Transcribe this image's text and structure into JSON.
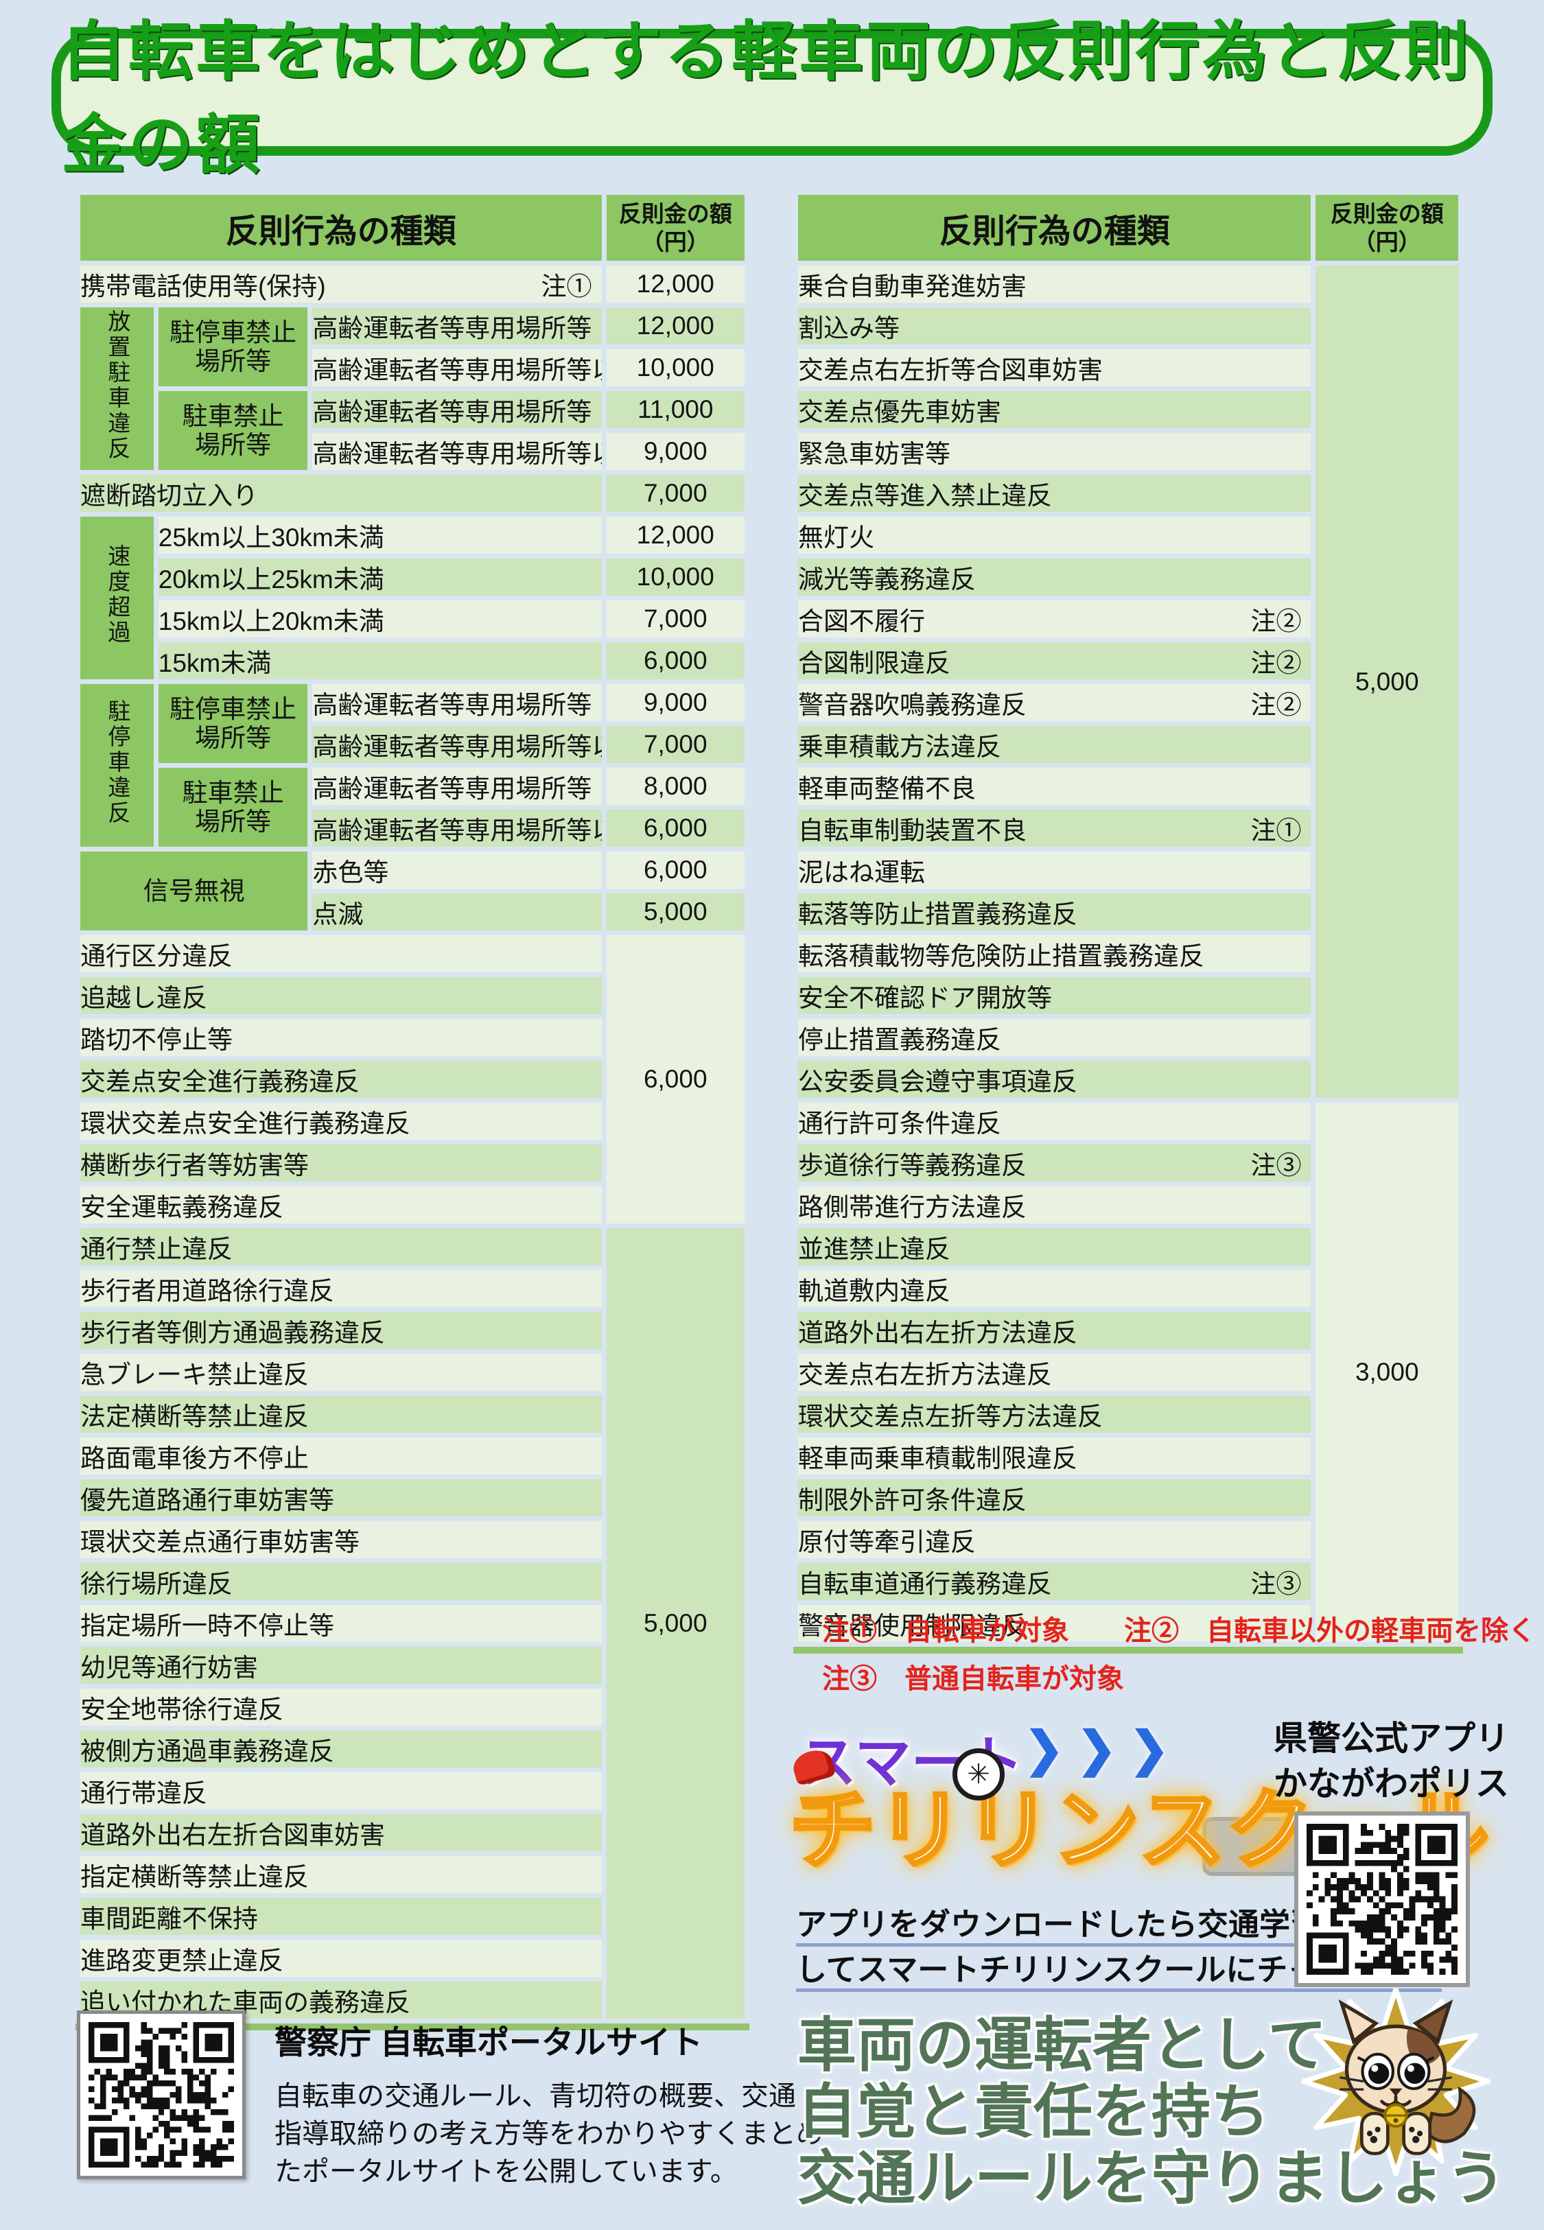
{
  "title": "自転車をはじめとする軽車両の反則行為と反則金の額",
  "tables": {
    "header": {
      "kind": "反則行為の種類",
      "fee1": "反則金の額",
      "fee2": "（円）"
    },
    "left": {
      "rows": [
        [
          {
            "t": "携帯電話使用等(保持)",
            "k": "n",
            "cs": 3,
            "note": "注①"
          },
          {
            "t": "12,000",
            "k": "f"
          }
        ],
        [
          {
            "t": "放置駐車違反",
            "k": "g",
            "v": 1,
            "rs": 4
          },
          {
            "t": "駐停車禁止\n場所等",
            "k": "g",
            "rs": 2
          },
          {
            "t": "高齢運転者等専用場所等",
            "k": "n"
          },
          {
            "t": "12,000",
            "k": "f"
          }
        ],
        [
          {
            "t": "高齢運転者等専用場所等以外",
            "k": "n"
          },
          {
            "t": "10,000",
            "k": "f"
          }
        ],
        [
          {
            "t": "駐車禁止\n場所等",
            "k": "g",
            "rs": 2
          },
          {
            "t": "高齢運転者等専用場所等",
            "k": "n"
          },
          {
            "t": "11,000",
            "k": "f"
          }
        ],
        [
          {
            "t": "高齢運転者等専用場所等以外",
            "k": "n"
          },
          {
            "t": "9,000",
            "k": "f"
          }
        ],
        [
          {
            "t": "遮断踏切立入り",
            "k": "n",
            "cs": 3
          },
          {
            "t": "7,000",
            "k": "f"
          }
        ],
        [
          {
            "t": "速度超過",
            "k": "g",
            "v": 1,
            "rs": 4
          },
          {
            "t": "25km以上30km未満",
            "k": "n",
            "cs": 2
          },
          {
            "t": "12,000",
            "k": "f"
          }
        ],
        [
          {
            "t": "20km以上25km未満",
            "k": "n",
            "cs": 2
          },
          {
            "t": "10,000",
            "k": "f"
          }
        ],
        [
          {
            "t": "15km以上20km未満",
            "k": "n",
            "cs": 2
          },
          {
            "t": "7,000",
            "k": "f"
          }
        ],
        [
          {
            "t": "15km未満",
            "k": "n",
            "cs": 2
          },
          {
            "t": "6,000",
            "k": "f"
          }
        ],
        [
          {
            "t": "駐停車違反",
            "k": "g",
            "v": 1,
            "rs": 4
          },
          {
            "t": "駐停車禁止\n場所等",
            "k": "g",
            "rs": 2
          },
          {
            "t": "高齢運転者等専用場所等",
            "k": "n"
          },
          {
            "t": "9,000",
            "k": "f"
          }
        ],
        [
          {
            "t": "高齢運転者等専用場所等以外",
            "k": "n"
          },
          {
            "t": "7,000",
            "k": "f"
          }
        ],
        [
          {
            "t": "駐車禁止\n場所等",
            "k": "g",
            "rs": 2
          },
          {
            "t": "高齢運転者等専用場所等",
            "k": "n"
          },
          {
            "t": "8,000",
            "k": "f"
          }
        ],
        [
          {
            "t": "高齢運転者等専用場所等以外",
            "k": "n"
          },
          {
            "t": "6,000",
            "k": "f"
          }
        ],
        [
          {
            "t": "信号無視",
            "k": "g",
            "rs": 2,
            "cs": 2
          },
          {
            "t": "赤色等",
            "k": "n"
          },
          {
            "t": "6,000",
            "k": "f"
          }
        ],
        [
          {
            "t": "点滅",
            "k": "n"
          },
          {
            "t": "5,000",
            "k": "f"
          }
        ],
        [
          {
            "t": "通行区分違反",
            "k": "n",
            "cs": 3
          },
          {
            "t": "6,000",
            "k": "f",
            "rs": 7,
            "shade": "light"
          }
        ],
        [
          {
            "t": "追越し違反",
            "k": "n",
            "cs": 3
          }
        ],
        [
          {
            "t": "踏切不停止等",
            "k": "n",
            "cs": 3
          }
        ],
        [
          {
            "t": "交差点安全進行義務違反",
            "k": "n",
            "cs": 3
          }
        ],
        [
          {
            "t": "環状交差点安全進行義務違反",
            "k": "n",
            "cs": 3
          }
        ],
        [
          {
            "t": "横断歩行者等妨害等",
            "k": "n",
            "cs": 3
          }
        ],
        [
          {
            "t": "安全運転義務違反",
            "k": "n",
            "cs": 3
          }
        ],
        [
          {
            "t": "通行禁止違反",
            "k": "n",
            "cs": 3
          },
          {
            "t": "5,000",
            "k": "f",
            "rs": 19,
            "shade": "med"
          }
        ],
        [
          {
            "t": "歩行者用道路徐行違反",
            "k": "n",
            "cs": 3
          }
        ],
        [
          {
            "t": "歩行者等側方通過義務違反",
            "k": "n",
            "cs": 3
          }
        ],
        [
          {
            "t": "急ブレーキ禁止違反",
            "k": "n",
            "cs": 3
          }
        ],
        [
          {
            "t": "法定横断等禁止違反",
            "k": "n",
            "cs": 3
          }
        ],
        [
          {
            "t": "路面電車後方不停止",
            "k": "n",
            "cs": 3
          }
        ],
        [
          {
            "t": "優先道路通行車妨害等",
            "k": "n",
            "cs": 3
          }
        ],
        [
          {
            "t": "環状交差点通行車妨害等",
            "k": "n",
            "cs": 3
          }
        ],
        [
          {
            "t": "徐行場所違反",
            "k": "n",
            "cs": 3
          }
        ],
        [
          {
            "t": "指定場所一時不停止等",
            "k": "n",
            "cs": 3
          }
        ],
        [
          {
            "t": "幼児等通行妨害",
            "k": "n",
            "cs": 3
          }
        ],
        [
          {
            "t": "安全地帯徐行違反",
            "k": "n",
            "cs": 3
          }
        ],
        [
          {
            "t": "被側方通過車義務違反",
            "k": "n",
            "cs": 3
          }
        ],
        [
          {
            "t": "通行帯違反",
            "k": "n",
            "cs": 3
          }
        ],
        [
          {
            "t": "道路外出右左折合図車妨害",
            "k": "n",
            "cs": 3
          }
        ],
        [
          {
            "t": "指定横断等禁止違反",
            "k": "n",
            "cs": 3
          }
        ],
        [
          {
            "t": "車間距離不保持",
            "k": "n",
            "cs": 3
          }
        ],
        [
          {
            "t": "進路変更禁止違反",
            "k": "n",
            "cs": 3
          }
        ],
        [
          {
            "t": "追い付かれた車両の義務違反",
            "k": "n",
            "cs": 3
          }
        ]
      ]
    },
    "right": {
      "rows": [
        [
          {
            "t": "乗合自動車発進妨害",
            "k": "n"
          },
          {
            "t": "5,000",
            "k": "f",
            "rs": 20,
            "shade": "med"
          }
        ],
        [
          {
            "t": "割込み等",
            "k": "n"
          }
        ],
        [
          {
            "t": "交差点右左折等合図車妨害",
            "k": "n"
          }
        ],
        [
          {
            "t": "交差点優先車妨害",
            "k": "n"
          }
        ],
        [
          {
            "t": "緊急車妨害等",
            "k": "n"
          }
        ],
        [
          {
            "t": "交差点等進入禁止違反",
            "k": "n"
          }
        ],
        [
          {
            "t": "無灯火",
            "k": "n"
          }
        ],
        [
          {
            "t": "減光等義務違反",
            "k": "n"
          }
        ],
        [
          {
            "t": "合図不履行",
            "k": "n",
            "note": "注②"
          }
        ],
        [
          {
            "t": "合図制限違反",
            "k": "n",
            "note": "注②"
          }
        ],
        [
          {
            "t": "警音器吹鳴義務違反",
            "k": "n",
            "note": "注②"
          }
        ],
        [
          {
            "t": "乗車積載方法違反",
            "k": "n"
          }
        ],
        [
          {
            "t": "軽車両整備不良",
            "k": "n"
          }
        ],
        [
          {
            "t": "自転車制動装置不良",
            "k": "n",
            "note": "注①"
          }
        ],
        [
          {
            "t": "泥はね運転",
            "k": "n"
          }
        ],
        [
          {
            "t": "転落等防止措置義務違反",
            "k": "n"
          }
        ],
        [
          {
            "t": "転落積載物等危険防止措置義務違反",
            "k": "n"
          }
        ],
        [
          {
            "t": "安全不確認ドア開放等",
            "k": "n"
          }
        ],
        [
          {
            "t": "停止措置義務違反",
            "k": "n"
          }
        ],
        [
          {
            "t": "公安委員会遵守事項違反",
            "k": "n"
          }
        ],
        [
          {
            "t": "通行許可条件違反",
            "k": "n"
          },
          {
            "t": "3,000",
            "k": "f",
            "rs": 13,
            "shade": "light"
          }
        ],
        [
          {
            "t": "歩道徐行等義務違反",
            "k": "n",
            "note": "注③"
          }
        ],
        [
          {
            "t": "路側帯進行方法違反",
            "k": "n"
          }
        ],
        [
          {
            "t": "並進禁止違反",
            "k": "n"
          }
        ],
        [
          {
            "t": "軌道敷内違反",
            "k": "n"
          }
        ],
        [
          {
            "t": "道路外出右左折方法違反",
            "k": "n"
          }
        ],
        [
          {
            "t": "交差点右左折方法違反",
            "k": "n"
          }
        ],
        [
          {
            "t": "環状交差点左折等方法違反",
            "k": "n"
          }
        ],
        [
          {
            "t": "軽車両乗車積載制限違反",
            "k": "n"
          }
        ],
        [
          {
            "t": "制限外許可条件違反",
            "k": "n"
          }
        ],
        [
          {
            "t": "原付等牽引違反",
            "k": "n"
          }
        ],
        [
          {
            "t": "自転車道通行義務違反",
            "k": "n",
            "note": "注③"
          }
        ],
        [
          {
            "t": "警音器使用制限違反",
            "k": "n"
          }
        ]
      ]
    }
  },
  "notes": {
    "line1": "注①　自転車が対象　　注②　自転車以外の軽車両を除く",
    "line2": "注③　普通自転車が対象"
  },
  "chirin": {
    "smart": "スマート",
    "arrows": "❯❯❯",
    "school": "チリリンスクール",
    "wheel_glyph": "✳"
  },
  "app": {
    "line1": "県警公式アプリ",
    "line2": "かながわポリス"
  },
  "caption": {
    "line1": "アプリをダウンロードしたら交通学習をタップ",
    "line2": "してスマートチリリンスクールにチャレンジ！"
  },
  "portal": {
    "title": "警察庁 自転車ポータルサイト",
    "body1": "自転車の交通ルール、青切符の概要、交通",
    "body2": "指導取締りの考え方等をわかりやすくまとめ",
    "body3": "たポータルサイトを公開しています。"
  },
  "slogan": {
    "line1": "車両の運転者として",
    "line2": "自覚と責任を持ち",
    "line3": "交通ルールを守りましょう"
  },
  "colors": {
    "page_bg": "#d9e4f1",
    "title_green": "#17a017",
    "header_green": "#8cc763",
    "row_light": "#e9f2e1",
    "row_medium": "#cde5bb",
    "note_red": "#e3231c",
    "smart_purple": "#7231d6",
    "arrow_blue": "#2a6ae0",
    "school_orange": "#f29a0d",
    "slogan_green": "#527457",
    "star_gold": "#c5a02f"
  }
}
